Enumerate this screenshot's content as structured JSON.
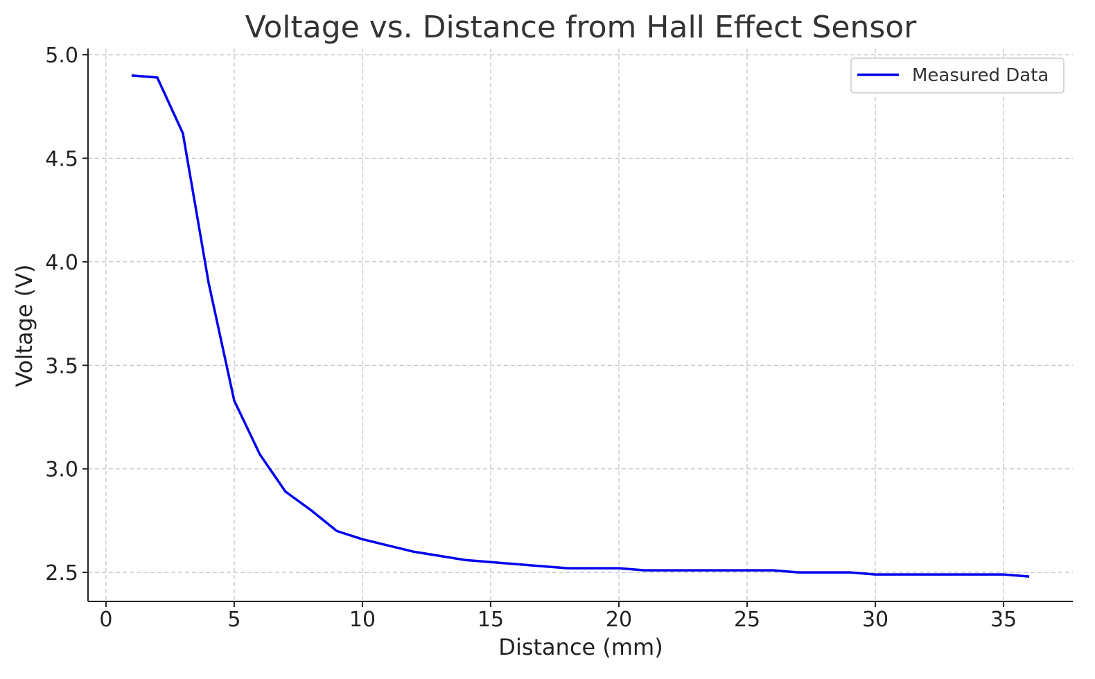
{
  "chart_data": {
    "type": "line",
    "title": "Voltage vs. Distance from Hall Effect Sensor",
    "xlabel": "Distance (mm)",
    "ylabel": "Voltage (V)",
    "xlim": [
      -0.7,
      37.7
    ],
    "ylim": [
      2.36,
      5.03
    ],
    "xticks": [
      0,
      5,
      10,
      15,
      20,
      25,
      30,
      35
    ],
    "xtick_labels": [
      "0",
      "5",
      "10",
      "15",
      "20",
      "25",
      "30",
      "35"
    ],
    "yticks": [
      2.5,
      3.0,
      3.5,
      4.0,
      4.5,
      5.0
    ],
    "ytick_labels": [
      "2.5",
      "3.0",
      "3.5",
      "4.0",
      "4.5",
      "5.0"
    ],
    "grid": true,
    "legend_position": "top-right",
    "series": [
      {
        "name": "Measured Data",
        "color": "#0000ee",
        "x": [
          1,
          2,
          3,
          4,
          5,
          6,
          7,
          8,
          9,
          10,
          12,
          14,
          16,
          18,
          20,
          21,
          26,
          27,
          29,
          30,
          35,
          36
        ],
        "y": [
          4.9,
          4.89,
          4.62,
          3.9,
          3.33,
          3.07,
          2.89,
          2.8,
          2.7,
          2.66,
          2.6,
          2.56,
          2.54,
          2.52,
          2.52,
          2.51,
          2.51,
          2.5,
          2.5,
          2.49,
          2.49,
          2.48
        ]
      }
    ]
  }
}
